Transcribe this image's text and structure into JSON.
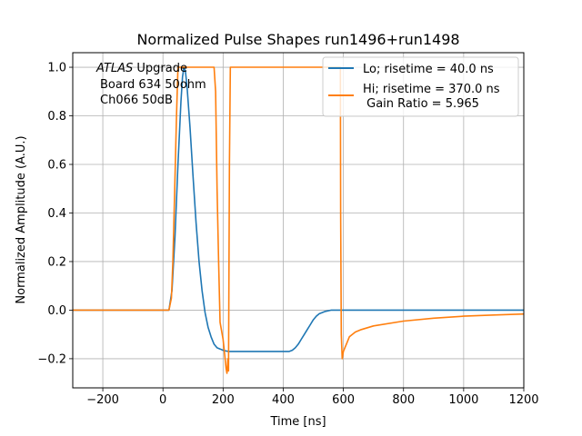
{
  "chart_data": {
    "type": "line",
    "title": "Normalized Pulse Shapes run1496+run1498",
    "xlabel": "Time [ns]",
    "ylabel": "Normalized Amplitude (A.U.)",
    "xlim": [
      -300,
      1200
    ],
    "ylim": [
      -0.32,
      1.06
    ],
    "xticks": [
      -200,
      0,
      200,
      400,
      600,
      800,
      1000,
      1200
    ],
    "xtick_labels": [
      "−200",
      "0",
      "200",
      "400",
      "600",
      "800",
      "1000",
      "1200"
    ],
    "yticks": [
      -0.2,
      0.0,
      0.2,
      0.4,
      0.6,
      0.8,
      1.0
    ],
    "ytick_labels": [
      "−0.2",
      "0.0",
      "0.2",
      "0.4",
      "0.6",
      "0.8",
      "1.0"
    ],
    "grid": true,
    "legend_position": "top-right",
    "annotation": {
      "italic": "ATLAS",
      "rest": " Upgrade",
      "line2": "Board 634 50ohm",
      "line3": "Ch066 50dB"
    },
    "series": [
      {
        "name": "Lo; risetime = 40.0 ns",
        "color": "#1f77b4",
        "x": [
          -300,
          20,
          30,
          40,
          50,
          60,
          65,
          70,
          75,
          80,
          90,
          100,
          110,
          120,
          130,
          140,
          150,
          160,
          170,
          180,
          190,
          200,
          210,
          220,
          240,
          280,
          350,
          420,
          430,
          440,
          450,
          460,
          470,
          480,
          490,
          500,
          510,
          520,
          540,
          560,
          600,
          1200
        ],
        "y": [
          0.0,
          0.0,
          0.08,
          0.3,
          0.6,
          0.86,
          0.96,
          1.0,
          0.98,
          0.92,
          0.75,
          0.55,
          0.36,
          0.2,
          0.08,
          -0.01,
          -0.07,
          -0.11,
          -0.14,
          -0.155,
          -0.16,
          -0.165,
          -0.168,
          -0.17,
          -0.17,
          -0.17,
          -0.17,
          -0.17,
          -0.165,
          -0.155,
          -0.14,
          -0.12,
          -0.1,
          -0.08,
          -0.06,
          -0.04,
          -0.025,
          -0.015,
          -0.005,
          0.0,
          0.0,
          0.0
        ]
      },
      {
        "name": "Hi; risetime = 370.0 ns",
        "extra_legend_line": " Gain Ratio = 5.965",
        "color": "#ff7f0e",
        "x": [
          -300,
          20,
          28,
          33,
          38,
          45,
          50,
          60,
          70,
          90,
          150,
          170,
          175,
          180,
          185,
          190,
          200,
          205,
          210,
          213,
          216,
          218,
          221,
          224,
          590,
          591,
          593,
          596,
          600,
          610,
          620,
          640,
          660,
          700,
          800,
          900,
          1000,
          1100,
          1200
        ],
        "y": [
          0.0,
          0.0,
          0.05,
          0.2,
          0.45,
          0.8,
          1.0,
          1.0,
          1.0,
          1.0,
          1.0,
          1.0,
          0.9,
          0.5,
          0.2,
          -0.05,
          -0.12,
          -0.18,
          -0.24,
          -0.26,
          -0.2,
          -0.25,
          0.6,
          1.0,
          1.0,
          0.4,
          -0.1,
          -0.2,
          -0.17,
          -0.14,
          -0.11,
          -0.09,
          -0.08,
          -0.065,
          -0.045,
          -0.033,
          -0.025,
          -0.02,
          -0.016
        ]
      }
    ]
  }
}
